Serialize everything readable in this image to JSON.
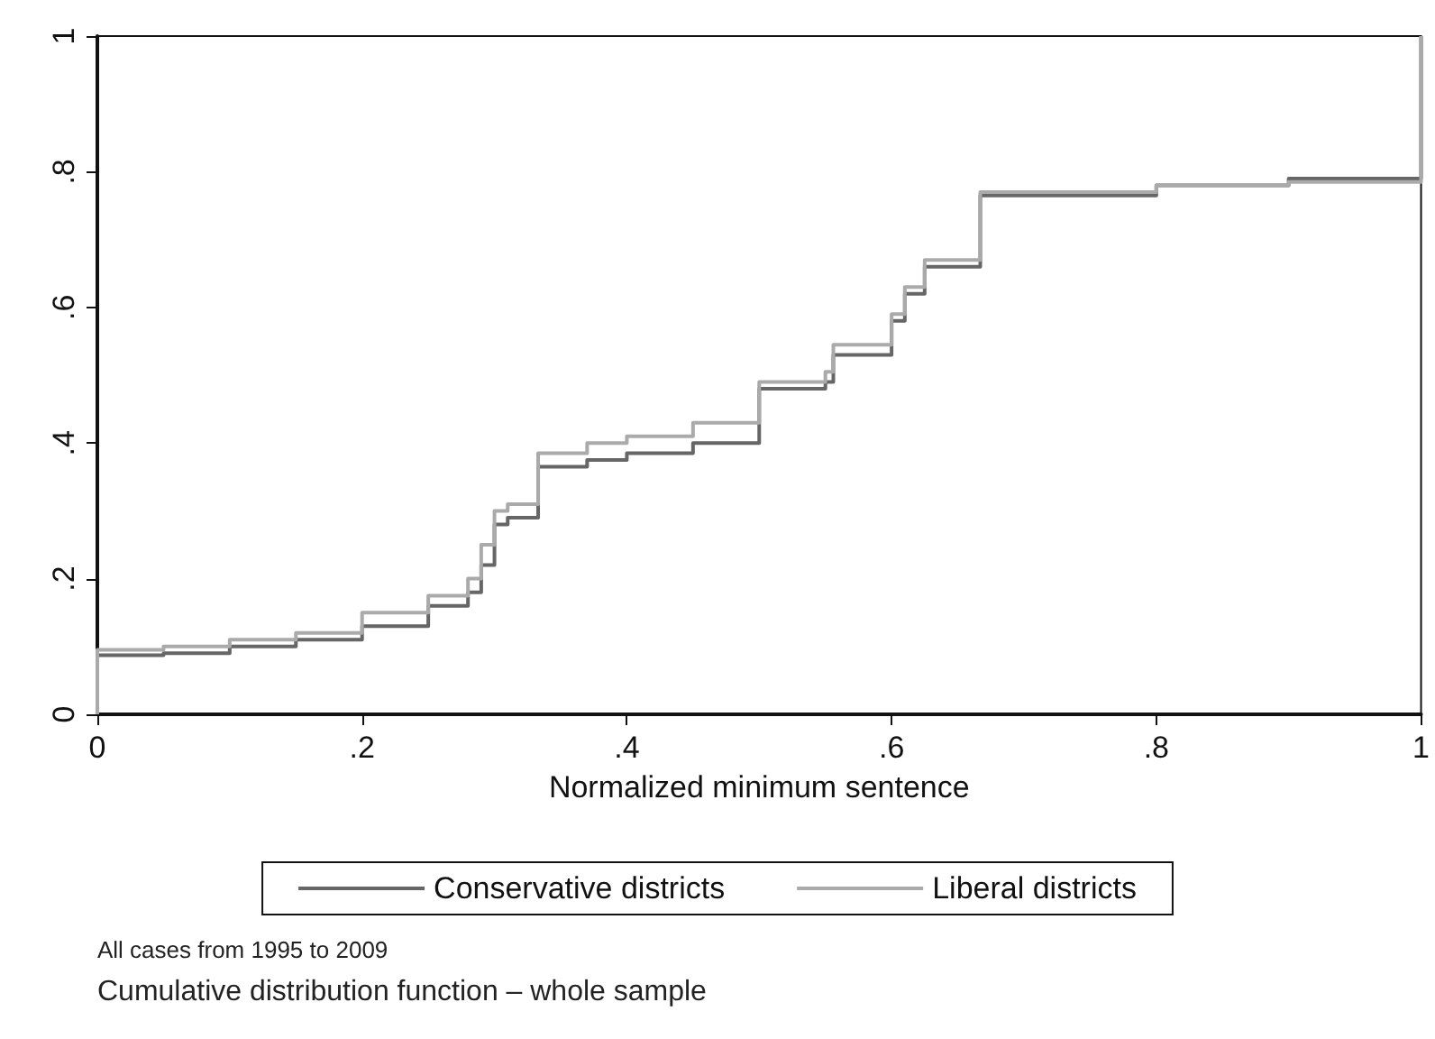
{
  "chart_data": {
    "type": "step",
    "xlabel": "Normalized minimum sentence",
    "series": [
      {
        "name": "Conservative districts",
        "color": "#666666",
        "x": [
          0,
          0,
          0.05,
          0.1,
          0.15,
          0.2,
          0.25,
          0.28,
          0.29,
          0.3,
          0.31,
          0.333,
          0.37,
          0.4,
          0.45,
          0.5,
          0.55,
          0.556,
          0.6,
          0.61,
          0.625,
          0.667,
          0.8,
          0.9,
          1,
          1
        ],
        "values": [
          0,
          0.087,
          0.09,
          0.1,
          0.11,
          0.13,
          0.16,
          0.18,
          0.22,
          0.28,
          0.29,
          0.365,
          0.375,
          0.385,
          0.4,
          0.48,
          0.49,
          0.53,
          0.58,
          0.62,
          0.66,
          0.765,
          0.78,
          0.79,
          0.795,
          1
        ]
      },
      {
        "name": "Liberal districts",
        "color": "#aaaaaa",
        "x": [
          0,
          0,
          0.05,
          0.1,
          0.15,
          0.2,
          0.25,
          0.28,
          0.29,
          0.3,
          0.31,
          0.333,
          0.37,
          0.4,
          0.45,
          0.5,
          0.55,
          0.556,
          0.6,
          0.61,
          0.625,
          0.667,
          0.8,
          0.9,
          1,
          1
        ],
        "values": [
          0,
          0.095,
          0.1,
          0.11,
          0.12,
          0.15,
          0.175,
          0.2,
          0.25,
          0.3,
          0.31,
          0.385,
          0.4,
          0.41,
          0.43,
          0.49,
          0.505,
          0.545,
          0.59,
          0.63,
          0.67,
          0.77,
          0.78,
          0.785,
          0.79,
          1
        ]
      }
    ],
    "xlim": [
      0,
      1
    ],
    "ylim": [
      0,
      1
    ],
    "xticks": [
      0,
      {
        "value": 0.2,
        "label": ".2"
      },
      {
        "value": 0.4,
        "label": ".4"
      },
      {
        "value": 0.6,
        "label": ".6"
      },
      {
        "value": 0.8,
        "label": ".8"
      },
      1
    ],
    "yticks": [
      0,
      {
        "value": 0.2,
        "label": ".2"
      },
      {
        "value": 0.4,
        "label": ".4"
      },
      {
        "value": 0.6,
        "label": ".6"
      },
      {
        "value": 0.8,
        "label": ".8"
      },
      1
    ],
    "annotations": [
      "All cases from 1995 to 2009",
      "Cumulative distribution function – whole sample"
    ],
    "legend": "bottom",
    "grid": false,
    "marker": "none",
    "line_style": "solid"
  }
}
